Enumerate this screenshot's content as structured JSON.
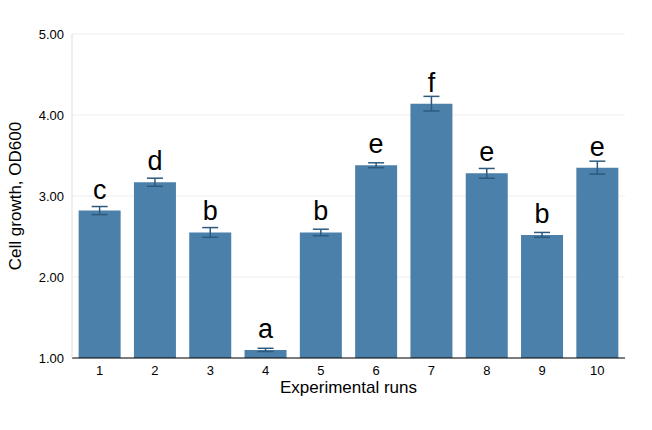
{
  "chart_data": {
    "type": "bar",
    "x_label": "Experimental runs",
    "y_label": "Cell growth, OD600",
    "categories": [
      "1",
      "2",
      "3",
      "4",
      "5",
      "6",
      "7",
      "8",
      "9",
      "10"
    ],
    "values": [
      2.82,
      3.17,
      2.55,
      1.1,
      2.55,
      3.38,
      4.14,
      3.28,
      2.52,
      3.35
    ],
    "errors": [
      0.05,
      0.05,
      0.06,
      0.02,
      0.04,
      0.03,
      0.09,
      0.06,
      0.03,
      0.08
    ],
    "annotations": [
      "c",
      "d",
      "b",
      "a",
      "b",
      "e",
      "f",
      "e",
      "b",
      "e"
    ],
    "color": "#4a80a9",
    "ylim": [
      1,
      5
    ],
    "yticks": [
      {
        "value": 1,
        "label": "1.00"
      },
      {
        "value": 2,
        "label": "2.00"
      },
      {
        "value": 3,
        "label": "3.00"
      },
      {
        "value": 4,
        "label": "4.00"
      },
      {
        "value": 5,
        "label": "5.00"
      }
    ],
    "grid": true
  }
}
